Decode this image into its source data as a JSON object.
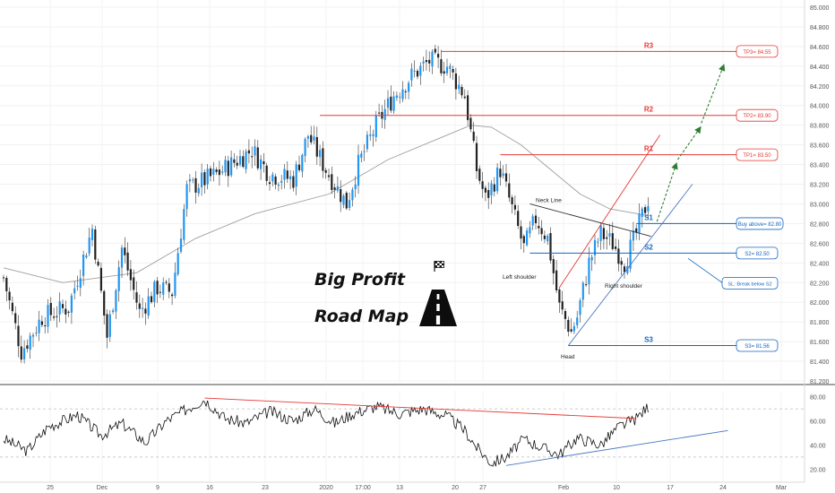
{
  "chart_data": {
    "type": "candlestick",
    "overlay_text": {
      "line1": "Big Profit",
      "line2": "Road Map"
    },
    "x_ticks": [
      "25",
      "Dec",
      "9",
      "16",
      "23",
      "2020",
      "17:00",
      "13",
      "20",
      "27",
      "Feb",
      "10",
      "17",
      "24",
      "Mar"
    ],
    "price_axis": {
      "min": 81.2,
      "max": 85.0,
      "ticks": [
        "85.000",
        "84.800",
        "84.600",
        "84.400",
        "84.200",
        "84.000",
        "83.800",
        "83.600",
        "83.400",
        "83.200",
        "83.000",
        "82.800",
        "82.600",
        "82.400",
        "82.200",
        "82.000",
        "81.800",
        "81.600",
        "81.400",
        "81.200"
      ]
    },
    "levels": [
      {
        "name": "R3",
        "value": 84.55,
        "tag": "TP3= 84.55",
        "color": "#e53935"
      },
      {
        "name": "R2",
        "value": 83.9,
        "tag": "TP2= 83.90",
        "color": "#e53935"
      },
      {
        "name": "R1",
        "value": 83.5,
        "tag": "TP1= 83.50",
        "color": "#e53935"
      },
      {
        "name": "S1",
        "value": 82.8,
        "tag": "Buy above= 82.80",
        "color": "#1565c0"
      },
      {
        "name": "S2",
        "value": 82.5,
        "tag": "S2= 82.50",
        "color": "#1565c0"
      },
      {
        "name": "S3",
        "value": 81.56,
        "tag": "S3= 81.56",
        "color": "#1565c0"
      }
    ],
    "sl_note": "SL: Break below S2",
    "pattern_labels": {
      "neck_line": "Neck Line",
      "left_shoulder": "Left shoulder",
      "head": "Head",
      "right_shoulder": "Right shoulder"
    },
    "close_anchors": [
      [
        0,
        82.25
      ],
      [
        6,
        81.5
      ],
      [
        13,
        81.85
      ],
      [
        22,
        81.95
      ],
      [
        30,
        82.75
      ],
      [
        35,
        81.65
      ],
      [
        40,
        82.55
      ],
      [
        46,
        81.9
      ],
      [
        52,
        82.15
      ],
      [
        57,
        82.1
      ],
      [
        62,
        83.15
      ],
      [
        72,
        83.3
      ],
      [
        84,
        83.55
      ],
      [
        90,
        83.3
      ],
      [
        98,
        83.25
      ],
      [
        103,
        83.7
      ],
      [
        109,
        83.35
      ],
      [
        116,
        83.0
      ],
      [
        120,
        83.4
      ],
      [
        126,
        83.8
      ],
      [
        132,
        84.1
      ],
      [
        138,
        84.3
      ],
      [
        144,
        84.45
      ],
      [
        150,
        84.4
      ],
      [
        156,
        84.1
      ],
      [
        160,
        83.35
      ],
      [
        163,
        83.05
      ],
      [
        168,
        83.35
      ],
      [
        172,
        82.95
      ],
      [
        174,
        82.75
      ],
      [
        176,
        82.55
      ],
      [
        180,
        82.85
      ],
      [
        184,
        82.65
      ],
      [
        188,
        81.95
      ],
      [
        192,
        81.7
      ],
      [
        194,
        81.85
      ],
      [
        198,
        82.4
      ],
      [
        202,
        82.7
      ],
      [
        206,
        82.6
      ],
      [
        210,
        82.4
      ],
      [
        214,
        82.7
      ],
      [
        218,
        83.05
      ]
    ],
    "moving_average": [
      [
        0,
        82.35
      ],
      [
        20,
        82.2
      ],
      [
        45,
        82.3
      ],
      [
        65,
        82.65
      ],
      [
        85,
        82.9
      ],
      [
        110,
        83.1
      ],
      [
        130,
        83.45
      ],
      [
        150,
        83.7
      ],
      [
        158,
        83.8
      ],
      [
        165,
        83.78
      ],
      [
        175,
        83.6
      ],
      [
        185,
        83.35
      ],
      [
        195,
        83.1
      ],
      [
        205,
        82.95
      ],
      [
        218,
        82.88
      ]
    ],
    "projection_path": [
      {
        "t": 221,
        "v": 82.82
      },
      {
        "t": 228,
        "v": 83.45
      },
      {
        "t": 236,
        "v": 83.82
      },
      {
        "t": 244,
        "v": 84.45
      }
    ],
    "rsi": {
      "axis_ticks": [
        "80.00",
        "60.00",
        "40.00",
        "20.00"
      ],
      "min": 15,
      "max": 85,
      "dashed_levels": [
        70,
        30
      ],
      "anchors": [
        [
          0,
          45
        ],
        [
          8,
          35
        ],
        [
          15,
          55
        ],
        [
          25,
          65
        ],
        [
          33,
          48
        ],
        [
          40,
          58
        ],
        [
          48,
          42
        ],
        [
          55,
          60
        ],
        [
          62,
          70
        ],
        [
          68,
          78
        ],
        [
          75,
          62
        ],
        [
          82,
          58
        ],
        [
          90,
          68
        ],
        [
          98,
          60
        ],
        [
          105,
          70
        ],
        [
          112,
          58
        ],
        [
          118,
          66
        ],
        [
          126,
          72
        ],
        [
          134,
          66
        ],
        [
          142,
          70
        ],
        [
          150,
          64
        ],
        [
          156,
          52
        ],
        [
          160,
          38
        ],
        [
          165,
          25
        ],
        [
          170,
          30
        ],
        [
          176,
          45
        ],
        [
          182,
          38
        ],
        [
          188,
          32
        ],
        [
          194,
          46
        ],
        [
          202,
          40
        ],
        [
          208,
          55
        ],
        [
          214,
          62
        ],
        [
          218,
          72
        ]
      ],
      "resistance_line": [
        [
          68,
          79
        ],
        [
          214,
          62
        ]
      ],
      "support_line": [
        [
          170,
          23
        ],
        [
          245,
          52
        ]
      ]
    }
  }
}
